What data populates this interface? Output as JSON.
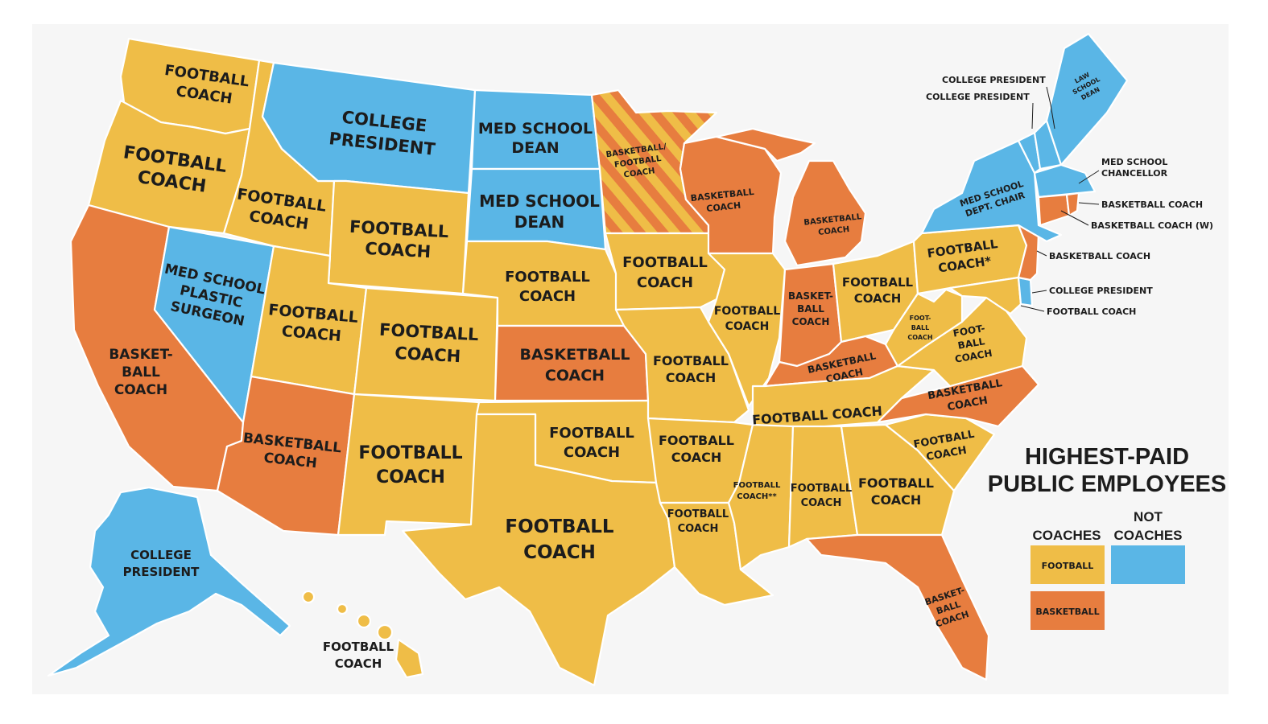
{
  "colors": {
    "football": "#efbd47",
    "basketball": "#e77d3f",
    "not_coach": "#5ab6e6",
    "border": "#ffffff",
    "background": "#f6f6f6",
    "text": "#1c1c1c"
  },
  "legend": {
    "title_line1": "HIGHEST-PAID",
    "title_line2": "PUBLIC EMPLOYEES",
    "coaches_header": "COACHES",
    "not_coaches_header_line1": "NOT",
    "not_coaches_header_line2": "COACHES",
    "football_label": "FOOTBALL",
    "basketball_label": "BASKETBALL"
  },
  "states": {
    "WA": {
      "l1": "FOOTBALL",
      "l2": "COACH",
      "category": "football"
    },
    "OR": {
      "l1": "FOOTBALL",
      "l2": "COACH",
      "category": "football"
    },
    "CA": {
      "l1": "BASKET-",
      "l2": "BALL",
      "l3": "COACH",
      "category": "basketball"
    },
    "NV": {
      "l1": "MED SCHOOL",
      "l2": "PLASTIC",
      "l3": "SURGEON",
      "category": "not_coach"
    },
    "ID": {
      "l1": "FOOTBALL",
      "l2": "COACH",
      "category": "football"
    },
    "MT": {
      "l1": "COLLEGE",
      "l2": "PRESIDENT",
      "category": "not_coach"
    },
    "WY": {
      "l1": "FOOTBALL",
      "l2": "COACH",
      "category": "football"
    },
    "UT": {
      "l1": "FOOTBALL",
      "l2": "COACH",
      "category": "football"
    },
    "CO": {
      "l1": "FOOTBALL",
      "l2": "COACH",
      "category": "football"
    },
    "AZ": {
      "l1": "BASKETBALL",
      "l2": "COACH",
      "category": "basketball"
    },
    "NM": {
      "l1": "FOOTBALL",
      "l2": "COACH",
      "category": "football"
    },
    "ND": {
      "l1": "MED SCHOOL",
      "l2": "DEAN",
      "category": "not_coach"
    },
    "SD": {
      "l1": "MED SCHOOL",
      "l2": "DEAN",
      "category": "not_coach"
    },
    "NE": {
      "l1": "FOOTBALL",
      "l2": "COACH",
      "category": "football"
    },
    "KS": {
      "l1": "BASKETBALL",
      "l2": "COACH",
      "category": "basketball"
    },
    "OK": {
      "l1": "FOOTBALL",
      "l2": "COACH",
      "category": "football"
    },
    "TX": {
      "l1": "FOOTBALL",
      "l2": "COACH",
      "category": "football"
    },
    "MN": {
      "l1": "BASKETBALL/",
      "l2": "FOOTBALL",
      "l3": "COACH",
      "category": "split"
    },
    "IA": {
      "l1": "FOOTBALL",
      "l2": "COACH",
      "category": "football"
    },
    "MO": {
      "l1": "FOOTBALL",
      "l2": "COACH",
      "category": "football"
    },
    "AR": {
      "l1": "FOOTBALL",
      "l2": "COACH",
      "category": "football"
    },
    "LA": {
      "l1": "FOOTBALL",
      "l2": "COACH",
      "category": "football"
    },
    "WI": {
      "l1": "BASKETBALL",
      "l2": "COACH",
      "category": "basketball"
    },
    "IL": {
      "l1": "FOOTBALL",
      "l2": "COACH",
      "category": "football"
    },
    "MI": {
      "l1": "BASKETBALL",
      "l2": "COACH",
      "category": "basketball"
    },
    "IN": {
      "l1": "BASKET-",
      "l2": "BALL",
      "l3": "COACH",
      "category": "basketball"
    },
    "OH": {
      "l1": "FOOTBALL",
      "l2": "COACH",
      "category": "football"
    },
    "KY": {
      "l1": "BASKETBALL",
      "l2": "COACH",
      "category": "basketball"
    },
    "TN": {
      "l1": "FOOTBALL COACH",
      "category": "football"
    },
    "MS": {
      "l1": "FOOTBALL",
      "l2": "COACH**",
      "category": "football"
    },
    "AL": {
      "l1": "FOOTBALL",
      "l2": "COACH",
      "category": "football"
    },
    "GA": {
      "l1": "FOOTBALL",
      "l2": "COACH",
      "category": "football"
    },
    "FL": {
      "l1": "BASKET-",
      "l2": "BALL",
      "l3": "COACH",
      "category": "basketball"
    },
    "SC": {
      "l1": "FOOTBALL",
      "l2": "COACH",
      "category": "football"
    },
    "NC": {
      "l1": "BASKETBALL",
      "l2": "COACH",
      "category": "basketball"
    },
    "VA": {
      "l1": "FOOT-",
      "l2": "BALL",
      "l3": "COACH",
      "category": "football"
    },
    "WV": {
      "l1": "FOOT-",
      "l2": "BALL",
      "l3": "COACH",
      "category": "football"
    },
    "PA": {
      "l1": "FOOTBALL",
      "l2": "COACH*",
      "category": "football"
    },
    "NY": {
      "l1": "MED SCHOOL",
      "l2": "DEPT. CHAIR",
      "category": "not_coach"
    },
    "ME": {
      "l1": "LAW",
      "l2": "SCHOOL",
      "l3": "DEAN",
      "category": "not_coach"
    },
    "AK": {
      "l1": "COLLEGE",
      "l2": "PRESIDENT",
      "category": "not_coach"
    },
    "HI": {
      "l1": "FOOTBALL",
      "l2": "COACH",
      "category": "football"
    }
  },
  "callouts": {
    "VT": "COLLEGE PRESIDENT",
    "NH": "COLLEGE PRESIDENT",
    "MA": "MED SCHOOL",
    "MA2": "CHANCELLOR",
    "RI": "BASKETBALL COACH",
    "CT": "BASKETBALL COACH (W)",
    "NJ": "BASKETBALL COACH",
    "DE": "COLLEGE PRESIDENT",
    "MD": "FOOTBALL COACH"
  }
}
